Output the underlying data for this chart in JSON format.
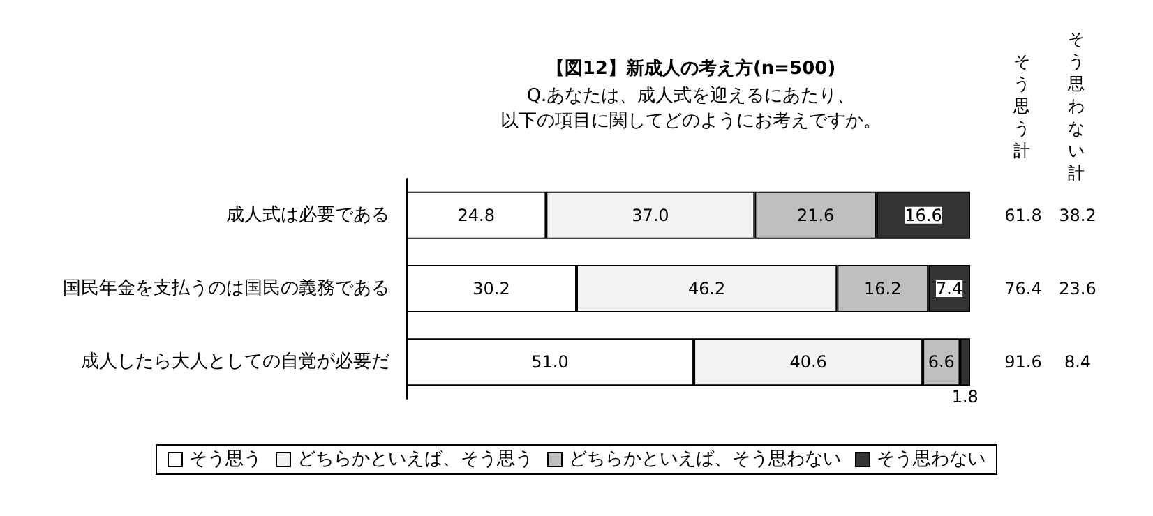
{
  "chart_data": {
    "type": "bar",
    "orientation": "horizontal",
    "stacked": true,
    "title": "【図12】新成人の考え方(n=500)",
    "subtitle": "Q.あなたは、成人式を迎えるにあたり、以下の項目に関してどのようにお考えですか。",
    "categories": [
      "成人式は必要である",
      "国民年金を支払うのは国民の義務である",
      "成人したら大人としての自覚が必要だ"
    ],
    "series": [
      {
        "name": "そう思う",
        "color": "#ffffff",
        "values": [
          24.8,
          30.2,
          51.0
        ],
        "value_labels": [
          "24.8",
          "30.2",
          "51.0"
        ]
      },
      {
        "name": "どちらかといえば、そう思う",
        "color": "#f2f2f2",
        "values": [
          37.0,
          46.2,
          40.6
        ],
        "value_labels": [
          "37.0",
          "46.2",
          "40.6"
        ]
      },
      {
        "name": "どちらかといえば、そう思わない",
        "color": "#bfbfbf",
        "values": [
          21.6,
          16.2,
          6.6
        ],
        "value_labels": [
          "21.6",
          "16.2",
          "6.6"
        ]
      },
      {
        "name": "そう思わない",
        "color": "#333333",
        "values": [
          16.6,
          7.4,
          1.8
        ],
        "value_labels": [
          "16.6",
          "7.4",
          "1.8"
        ]
      }
    ],
    "annotations": [
      "そう思う計",
      "そう思わない計",
      "61.8",
      "38.2",
      "76.4",
      "23.6",
      "91.6",
      "8.4"
    ],
    "legend": "bottom",
    "tick_labels": "y"
  }
}
